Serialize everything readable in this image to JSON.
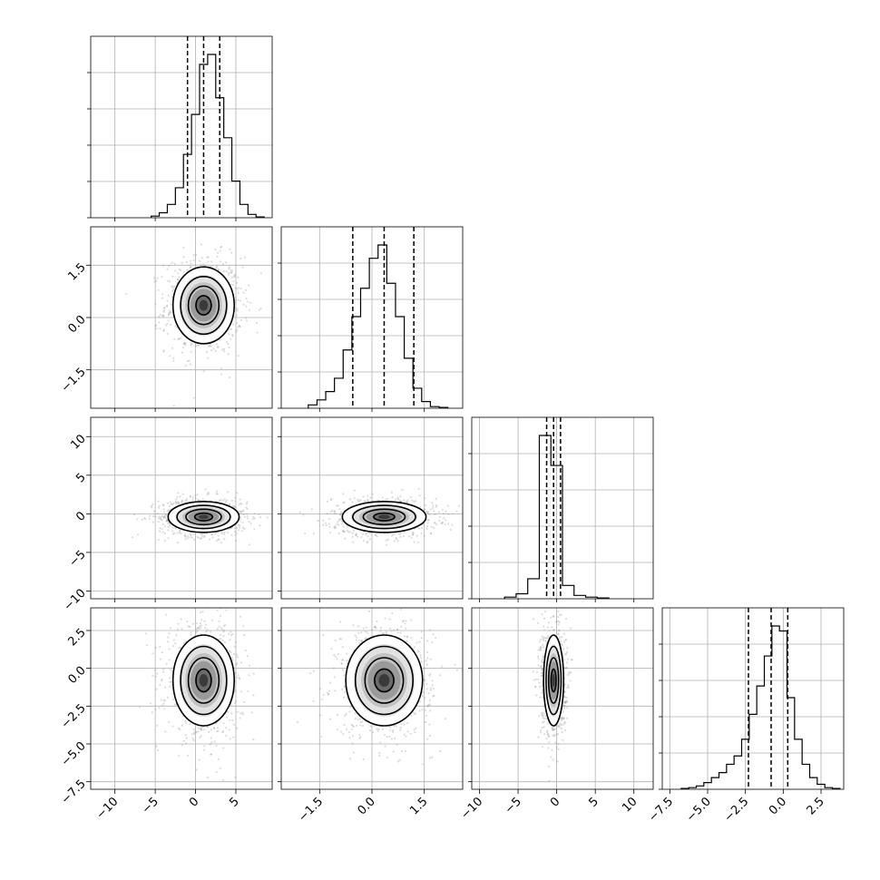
{
  "chart_data": {
    "type": "corner",
    "grid": true,
    "parameters": [
      {
        "range": [
          -13,
          9.5
        ],
        "ticks": [
          -10,
          -5,
          0,
          5
        ],
        "tick_labels": [
          "−10",
          "−5",
          "0",
          "5"
        ],
        "quantiles": [
          -1.0,
          1.0,
          3.0
        ],
        "mean": 1.0,
        "sd": 2.0,
        "hist_bins": [
          -5,
          -4,
          -3,
          -2,
          -1,
          0,
          1,
          2,
          3,
          4,
          5,
          6,
          7,
          8
        ],
        "hist_values": [
          0.01,
          0.03,
          0.08,
          0.18,
          0.38,
          0.62,
          0.92,
          0.98,
          0.72,
          0.48,
          0.22,
          0.08,
          0.02,
          0.005
        ]
      },
      {
        "range": [
          -2.6,
          2.6
        ],
        "ticks": [
          -1.5,
          0.0,
          1.5
        ],
        "tick_labels": [
          "−1.5",
          "0.0",
          "1.5"
        ],
        "quantiles": [
          -0.55,
          0.35,
          1.2
        ],
        "mean": 0.35,
        "sd": 0.45,
        "hist_bins": [
          -1.7,
          -1.45,
          -1.2,
          -0.95,
          -0.7,
          -0.45,
          -0.2,
          0.05,
          0.3,
          0.55,
          0.8,
          1.05,
          1.3,
          1.55,
          1.8,
          2.05
        ],
        "hist_values": [
          0.02,
          0.05,
          0.1,
          0.18,
          0.35,
          0.55,
          0.72,
          0.9,
          0.98,
          0.75,
          0.55,
          0.3,
          0.12,
          0.04,
          0.01,
          0.005
        ]
      },
      {
        "range": [
          -11,
          12.5
        ],
        "ticks": [
          -10,
          -5,
          0,
          5,
          10
        ],
        "tick_labels": [
          "−10",
          "−5",
          "0",
          "5",
          "10"
        ],
        "quantiles": [
          -1.3,
          -0.4,
          0.5
        ],
        "mean": -0.4,
        "sd": 1.4,
        "hist_bins": [
          -6,
          -4.5,
          -3,
          -1.5,
          0,
          1.5,
          3,
          4.5,
          6
        ],
        "hist_values": [
          0.01,
          0.03,
          0.12,
          0.98,
          0.8,
          0.08,
          0.02,
          0.01,
          0.005
        ]
      },
      {
        "range": [
          -8,
          4
        ],
        "ticks": [
          -7.5,
          -5.0,
          -2.5,
          0.0,
          2.5
        ],
        "tick_labels": [
          "−7.5",
          "−5.0",
          "−2.5",
          "0.0",
          "2.5"
        ],
        "quantiles": [
          -2.3,
          -0.8,
          0.3
        ],
        "mean": -0.8,
        "sd": 1.3,
        "hist_bins": [
          -6.5,
          -6,
          -5.5,
          -5,
          -4.5,
          -4,
          -3.5,
          -3,
          -2.5,
          -2,
          -1.5,
          -1,
          -0.5,
          0,
          0.5,
          1,
          1.5,
          2,
          2.5,
          3,
          3.5
        ],
        "hist_values": [
          0.005,
          0.01,
          0.02,
          0.04,
          0.07,
          0.1,
          0.15,
          0.2,
          0.3,
          0.45,
          0.62,
          0.8,
          0.98,
          0.95,
          0.55,
          0.3,
          0.15,
          0.07,
          0.03,
          0.01,
          0.005
        ]
      }
    ],
    "pairs": [
      {
        "x": 0,
        "y": 1,
        "sx": 1.9,
        "sy": 0.55,
        "cx": 1.0,
        "cy": 0.35
      },
      {
        "x": 0,
        "y": 2,
        "sx": 2.2,
        "sy": 1.0,
        "cx": 1.0,
        "cy": -0.4
      },
      {
        "x": 1,
        "y": 2,
        "sx": 0.6,
        "sy": 1.0,
        "cx": 0.35,
        "cy": -0.4
      },
      {
        "x": 0,
        "y": 3,
        "sx": 1.9,
        "sy": 1.5,
        "cx": 1.0,
        "cy": -0.8
      },
      {
        "x": 1,
        "y": 3,
        "sx": 0.55,
        "sy": 1.5,
        "cx": 0.35,
        "cy": -0.8
      },
      {
        "x": 2,
        "y": 3,
        "sx": 0.65,
        "sy": 1.5,
        "cx": -0.4,
        "cy": -0.8
      }
    ],
    "contour_levels_sigma": [
      0.5,
      1.0,
      1.5,
      2.0
    ]
  }
}
